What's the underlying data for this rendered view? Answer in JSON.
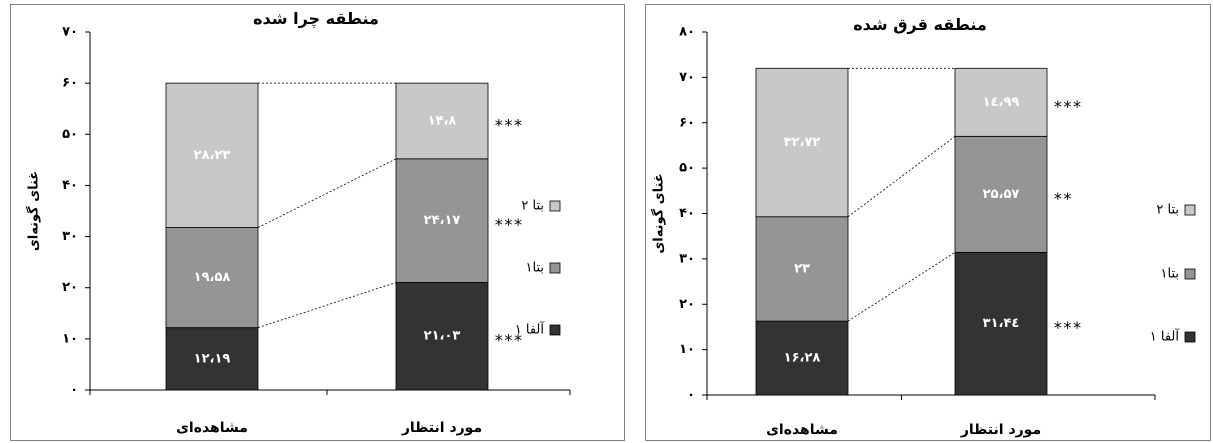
{
  "chart_data": [
    {
      "type": "bar",
      "stacked": true,
      "title": "منطقه چرا شده",
      "ylabel": "غنای گونه‌ای",
      "xlabel": "",
      "ylim": [
        0,
        70
      ],
      "yticks": [
        0,
        10,
        20,
        30,
        40,
        50,
        60,
        70
      ],
      "ytick_labels": [
        "۰",
        "۱۰",
        "۲۰",
        "۳۰",
        "۴۰",
        "۵۰",
        "۶۰",
        "۷۰"
      ],
      "categories": [
        "مشاهده‌ای",
        "مورد انتظار"
      ],
      "legend_position": "right",
      "series": [
        {
          "name": "آلفا ۱",
          "color": "#333333",
          "values": [
            12.19,
            21.03
          ],
          "labels": [
            "۱۲،۱۹",
            "۲۱،۰۳"
          ],
          "significance": [
            "",
            "***"
          ]
        },
        {
          "name": "بتا۱",
          "color": "#959595",
          "values": [
            19.58,
            24.17
          ],
          "labels": [
            "۱۹،۵۸",
            "۲۴،۱۷"
          ],
          "significance": [
            "",
            "***"
          ]
        },
        {
          "name": "بتا ۲",
          "color": "#c8c8c8",
          "values": [
            28.23,
            14.8
          ],
          "labels": [
            "۲۸،۲۳",
            "۱۴،۸"
          ],
          "significance": [
            "",
            "***"
          ]
        }
      ]
    },
    {
      "type": "bar",
      "stacked": true,
      "title": "منطقه قرق شده",
      "ylabel": "غنای گونه‌ای",
      "xlabel": "",
      "ylim": [
        0,
        80
      ],
      "yticks": [
        0,
        10,
        20,
        30,
        40,
        50,
        60,
        70,
        80
      ],
      "ytick_labels": [
        "۰",
        "۱۰",
        "۲۰",
        "۳۰",
        "۴۰",
        "۵۰",
        "۶۰",
        "۷۰",
        "۸۰"
      ],
      "categories": [
        "مشاهده‌ای",
        "مورد انتظار"
      ],
      "legend_position": "right",
      "series": [
        {
          "name": "آلفا ۱",
          "color": "#333333",
          "values": [
            16.28,
            31.44
          ],
          "labels": [
            "۱۶،۲۸",
            "۳۱،۴٤"
          ],
          "significance": [
            "",
            "***"
          ]
        },
        {
          "name": "بتا۱",
          "color": "#959595",
          "values": [
            23,
            25.57
          ],
          "labels": [
            "۲۳",
            "۲۵،۵۷"
          ],
          "significance": [
            "",
            "**"
          ]
        },
        {
          "name": "بتا ۲",
          "color": "#c8c8c8",
          "values": [
            32.72,
            14.99
          ],
          "labels": [
            "۳۲،۷۲",
            "۱٤،۹۹"
          ],
          "significance": [
            "",
            "***"
          ]
        }
      ]
    }
  ]
}
